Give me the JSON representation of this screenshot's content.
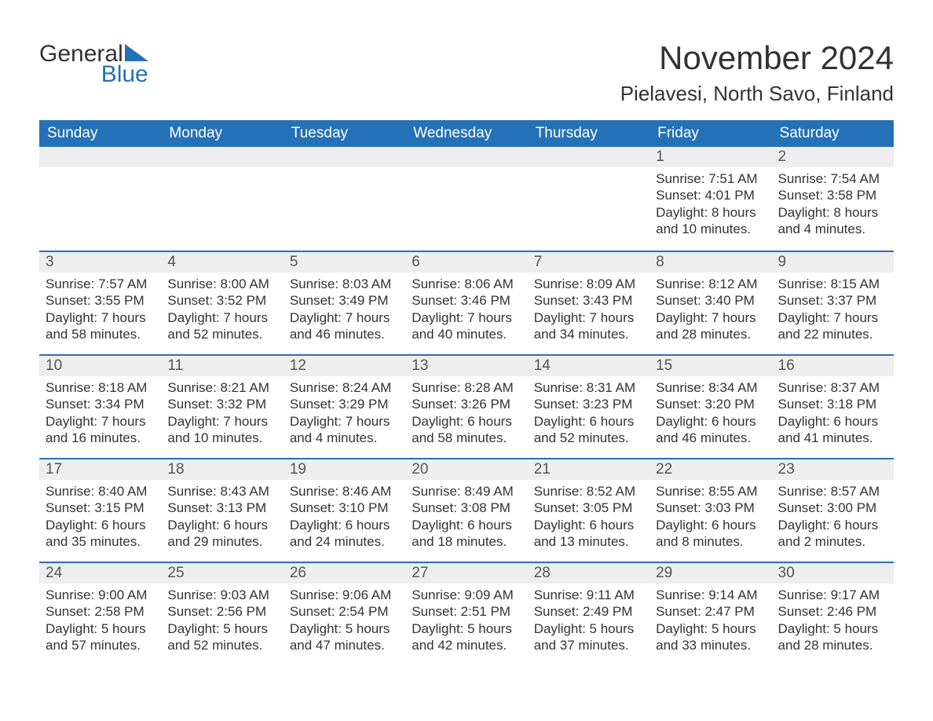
{
  "logo": {
    "text1": "General",
    "text2": "Blue",
    "shape_color": "#2571b8"
  },
  "title": "November 2024",
  "location": "Pielavesi, North Savo, Finland",
  "colors": {
    "header_bg": "#2571b8",
    "header_text": "#ffffff",
    "daynum_bg": "#eeeeee",
    "border": "#2571b8",
    "text": "#333333",
    "page_bg": "#ffffff"
  },
  "typography": {
    "title_fontsize": 42,
    "location_fontsize": 26,
    "weekday_fontsize": 19,
    "daynum_fontsize": 19,
    "body_fontsize": 17,
    "font_family": "Arial"
  },
  "weekdays": [
    "Sunday",
    "Monday",
    "Tuesday",
    "Wednesday",
    "Thursday",
    "Friday",
    "Saturday"
  ],
  "weeks": [
    [
      {
        "day": null
      },
      {
        "day": null
      },
      {
        "day": null
      },
      {
        "day": null
      },
      {
        "day": null
      },
      {
        "day": "1",
        "sunrise": "Sunrise: 7:51 AM",
        "sunset": "Sunset: 4:01 PM",
        "daylight1": "Daylight: 8 hours",
        "daylight2": "and 10 minutes."
      },
      {
        "day": "2",
        "sunrise": "Sunrise: 7:54 AM",
        "sunset": "Sunset: 3:58 PM",
        "daylight1": "Daylight: 8 hours",
        "daylight2": "and 4 minutes."
      }
    ],
    [
      {
        "day": "3",
        "sunrise": "Sunrise: 7:57 AM",
        "sunset": "Sunset: 3:55 PM",
        "daylight1": "Daylight: 7 hours",
        "daylight2": "and 58 minutes."
      },
      {
        "day": "4",
        "sunrise": "Sunrise: 8:00 AM",
        "sunset": "Sunset: 3:52 PM",
        "daylight1": "Daylight: 7 hours",
        "daylight2": "and 52 minutes."
      },
      {
        "day": "5",
        "sunrise": "Sunrise: 8:03 AM",
        "sunset": "Sunset: 3:49 PM",
        "daylight1": "Daylight: 7 hours",
        "daylight2": "and 46 minutes."
      },
      {
        "day": "6",
        "sunrise": "Sunrise: 8:06 AM",
        "sunset": "Sunset: 3:46 PM",
        "daylight1": "Daylight: 7 hours",
        "daylight2": "and 40 minutes."
      },
      {
        "day": "7",
        "sunrise": "Sunrise: 8:09 AM",
        "sunset": "Sunset: 3:43 PM",
        "daylight1": "Daylight: 7 hours",
        "daylight2": "and 34 minutes."
      },
      {
        "day": "8",
        "sunrise": "Sunrise: 8:12 AM",
        "sunset": "Sunset: 3:40 PM",
        "daylight1": "Daylight: 7 hours",
        "daylight2": "and 28 minutes."
      },
      {
        "day": "9",
        "sunrise": "Sunrise: 8:15 AM",
        "sunset": "Sunset: 3:37 PM",
        "daylight1": "Daylight: 7 hours",
        "daylight2": "and 22 minutes."
      }
    ],
    [
      {
        "day": "10",
        "sunrise": "Sunrise: 8:18 AM",
        "sunset": "Sunset: 3:34 PM",
        "daylight1": "Daylight: 7 hours",
        "daylight2": "and 16 minutes."
      },
      {
        "day": "11",
        "sunrise": "Sunrise: 8:21 AM",
        "sunset": "Sunset: 3:32 PM",
        "daylight1": "Daylight: 7 hours",
        "daylight2": "and 10 minutes."
      },
      {
        "day": "12",
        "sunrise": "Sunrise: 8:24 AM",
        "sunset": "Sunset: 3:29 PM",
        "daylight1": "Daylight: 7 hours",
        "daylight2": "and 4 minutes."
      },
      {
        "day": "13",
        "sunrise": "Sunrise: 8:28 AM",
        "sunset": "Sunset: 3:26 PM",
        "daylight1": "Daylight: 6 hours",
        "daylight2": "and 58 minutes."
      },
      {
        "day": "14",
        "sunrise": "Sunrise: 8:31 AM",
        "sunset": "Sunset: 3:23 PM",
        "daylight1": "Daylight: 6 hours",
        "daylight2": "and 52 minutes."
      },
      {
        "day": "15",
        "sunrise": "Sunrise: 8:34 AM",
        "sunset": "Sunset: 3:20 PM",
        "daylight1": "Daylight: 6 hours",
        "daylight2": "and 46 minutes."
      },
      {
        "day": "16",
        "sunrise": "Sunrise: 8:37 AM",
        "sunset": "Sunset: 3:18 PM",
        "daylight1": "Daylight: 6 hours",
        "daylight2": "and 41 minutes."
      }
    ],
    [
      {
        "day": "17",
        "sunrise": "Sunrise: 8:40 AM",
        "sunset": "Sunset: 3:15 PM",
        "daylight1": "Daylight: 6 hours",
        "daylight2": "and 35 minutes."
      },
      {
        "day": "18",
        "sunrise": "Sunrise: 8:43 AM",
        "sunset": "Sunset: 3:13 PM",
        "daylight1": "Daylight: 6 hours",
        "daylight2": "and 29 minutes."
      },
      {
        "day": "19",
        "sunrise": "Sunrise: 8:46 AM",
        "sunset": "Sunset: 3:10 PM",
        "daylight1": "Daylight: 6 hours",
        "daylight2": "and 24 minutes."
      },
      {
        "day": "20",
        "sunrise": "Sunrise: 8:49 AM",
        "sunset": "Sunset: 3:08 PM",
        "daylight1": "Daylight: 6 hours",
        "daylight2": "and 18 minutes."
      },
      {
        "day": "21",
        "sunrise": "Sunrise: 8:52 AM",
        "sunset": "Sunset: 3:05 PM",
        "daylight1": "Daylight: 6 hours",
        "daylight2": "and 13 minutes."
      },
      {
        "day": "22",
        "sunrise": "Sunrise: 8:55 AM",
        "sunset": "Sunset: 3:03 PM",
        "daylight1": "Daylight: 6 hours",
        "daylight2": "and 8 minutes."
      },
      {
        "day": "23",
        "sunrise": "Sunrise: 8:57 AM",
        "sunset": "Sunset: 3:00 PM",
        "daylight1": "Daylight: 6 hours",
        "daylight2": "and 2 minutes."
      }
    ],
    [
      {
        "day": "24",
        "sunrise": "Sunrise: 9:00 AM",
        "sunset": "Sunset: 2:58 PM",
        "daylight1": "Daylight: 5 hours",
        "daylight2": "and 57 minutes."
      },
      {
        "day": "25",
        "sunrise": "Sunrise: 9:03 AM",
        "sunset": "Sunset: 2:56 PM",
        "daylight1": "Daylight: 5 hours",
        "daylight2": "and 52 minutes."
      },
      {
        "day": "26",
        "sunrise": "Sunrise: 9:06 AM",
        "sunset": "Sunset: 2:54 PM",
        "daylight1": "Daylight: 5 hours",
        "daylight2": "and 47 minutes."
      },
      {
        "day": "27",
        "sunrise": "Sunrise: 9:09 AM",
        "sunset": "Sunset: 2:51 PM",
        "daylight1": "Daylight: 5 hours",
        "daylight2": "and 42 minutes."
      },
      {
        "day": "28",
        "sunrise": "Sunrise: 9:11 AM",
        "sunset": "Sunset: 2:49 PM",
        "daylight1": "Daylight: 5 hours",
        "daylight2": "and 37 minutes."
      },
      {
        "day": "29",
        "sunrise": "Sunrise: 9:14 AM",
        "sunset": "Sunset: 2:47 PM",
        "daylight1": "Daylight: 5 hours",
        "daylight2": "and 33 minutes."
      },
      {
        "day": "30",
        "sunrise": "Sunrise: 9:17 AM",
        "sunset": "Sunset: 2:46 PM",
        "daylight1": "Daylight: 5 hours",
        "daylight2": "and 28 minutes."
      }
    ]
  ]
}
